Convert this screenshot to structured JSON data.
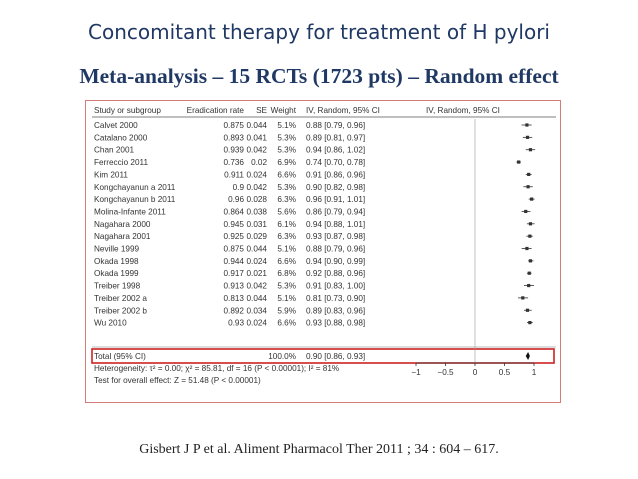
{
  "slide": {
    "title": "Concomitant therapy for treatment of H pylori",
    "subtitle": "Meta-analysis – 15 RCTs (1723 pts) – Random effect",
    "citation": "Gisbert J P et al. Aliment Pharmacol Ther 2011 ; 34 : 604 – 617."
  },
  "chart_data": {
    "type": "forest",
    "columns": [
      "Study or subgroup",
      "Eradication rate",
      "SE",
      "Weight",
      "IV, Random, 95% CI",
      "IV, Random, 95% CI"
    ],
    "studies": [
      {
        "name": "Calvet 2000",
        "rate": "0.875",
        "se": "0.044",
        "weight": "5.1%",
        "ci_text": "0.88 [0.79, 0.96]",
        "est": 0.88,
        "lo": 0.79,
        "hi": 0.96
      },
      {
        "name": "Catalano 2000",
        "rate": "0.893",
        "se": "0.041",
        "weight": "5.3%",
        "ci_text": "0.89 [0.81, 0.97]",
        "est": 0.89,
        "lo": 0.81,
        "hi": 0.97
      },
      {
        "name": "Chan 2001",
        "rate": "0.939",
        "se": "0.042",
        "weight": "5.3%",
        "ci_text": "0.94 [0.86, 1.02]",
        "est": 0.94,
        "lo": 0.86,
        "hi": 1.02
      },
      {
        "name": "Ferreccio 2011",
        "rate": "0.736",
        "se": "0.02",
        "weight": "6.9%",
        "ci_text": "0.74 [0.70, 0.78]",
        "est": 0.74,
        "lo": 0.7,
        "hi": 0.78
      },
      {
        "name": "Kim 2011",
        "rate": "0.911",
        "se": "0.024",
        "weight": "6.6%",
        "ci_text": "0.91 [0.86, 0.96]",
        "est": 0.91,
        "lo": 0.86,
        "hi": 0.96
      },
      {
        "name": "Kongchayanun a 2011",
        "rate": "0.9",
        "se": "0.042",
        "weight": "5.3%",
        "ci_text": "0.90 [0.82, 0.98]",
        "est": 0.9,
        "lo": 0.82,
        "hi": 0.98
      },
      {
        "name": "Kongchayanun b 2011",
        "rate": "0.96",
        "se": "0.028",
        "weight": "6.3%",
        "ci_text": "0.96 [0.91, 1.01]",
        "est": 0.96,
        "lo": 0.91,
        "hi": 1.01
      },
      {
        "name": "Molina-Infante 2011",
        "rate": "0.864",
        "se": "0.038",
        "weight": "5.6%",
        "ci_text": "0.86 [0.79, 0.94]",
        "est": 0.86,
        "lo": 0.79,
        "hi": 0.94
      },
      {
        "name": "Nagahara 2000",
        "rate": "0.945",
        "se": "0.031",
        "weight": "6.1%",
        "ci_text": "0.94 [0.88, 1.01]",
        "est": 0.94,
        "lo": 0.88,
        "hi": 1.01
      },
      {
        "name": "Nagahara 2001",
        "rate": "0.925",
        "se": "0.029",
        "weight": "6.3%",
        "ci_text": "0.93 [0.87, 0.98]",
        "est": 0.93,
        "lo": 0.87,
        "hi": 0.98
      },
      {
        "name": "Neville 1999",
        "rate": "0.875",
        "se": "0.044",
        "weight": "5.1%",
        "ci_text": "0.88 [0.79, 0.96]",
        "est": 0.88,
        "lo": 0.79,
        "hi": 0.96
      },
      {
        "name": "Okada 1998",
        "rate": "0.944",
        "se": "0.024",
        "weight": "6.6%",
        "ci_text": "0.94 [0.90, 0.99]",
        "est": 0.94,
        "lo": 0.9,
        "hi": 0.99
      },
      {
        "name": "Okada 1999",
        "rate": "0.917",
        "se": "0.021",
        "weight": "6.8%",
        "ci_text": "0.92 [0.88, 0.96]",
        "est": 0.92,
        "lo": 0.88,
        "hi": 0.96
      },
      {
        "name": "Treiber 1998",
        "rate": "0.913",
        "se": "0.042",
        "weight": "5.3%",
        "ci_text": "0.91 [0.83, 1.00]",
        "est": 0.91,
        "lo": 0.83,
        "hi": 1.0
      },
      {
        "name": "Treiber 2002 a",
        "rate": "0.813",
        "se": "0.044",
        "weight": "5.1%",
        "ci_text": "0.81 [0.73, 0.90]",
        "est": 0.81,
        "lo": 0.73,
        "hi": 0.9
      },
      {
        "name": "Treiber 2002 b",
        "rate": "0.892",
        "se": "0.034",
        "weight": "5.9%",
        "ci_text": "0.89 [0.83, 0.96]",
        "est": 0.89,
        "lo": 0.83,
        "hi": 0.96
      },
      {
        "name": "Wu 2010",
        "rate": "0.93",
        "se": "0.024",
        "weight": "6.6%",
        "ci_text": "0.93 [0.88, 0.98]",
        "est": 0.93,
        "lo": 0.88,
        "hi": 0.98
      }
    ],
    "total": {
      "name": "Total (95% CI)",
      "weight": "100.0%",
      "ci_text": "0.90 [0.86, 0.93]",
      "est": 0.9,
      "lo": 0.86,
      "hi": 0.93
    },
    "heterogeneity": "Heterogeneity: τ² = 0.00; χ² = 85.81, df = 16 (P < 0.00001); I² = 81%",
    "overall_effect": "Test for overall effect: Z = 51.48 (P < 0.00001)",
    "xlim": [
      -1,
      1
    ],
    "ticks": [
      -1,
      -0.5,
      0,
      0.5,
      1
    ],
    "tick_labels": [
      "−1",
      "−0.5",
      "0",
      "0.5",
      "1"
    ],
    "highlight_color": "#cc2222"
  }
}
